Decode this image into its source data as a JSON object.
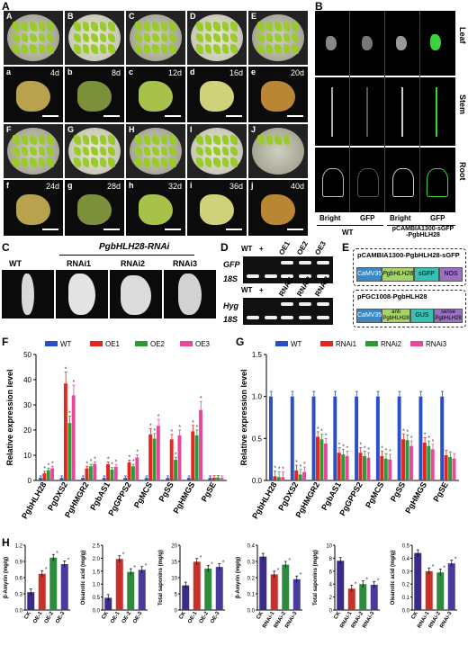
{
  "panel_labels": {
    "A": "A",
    "B": "B",
    "C": "C",
    "D": "D",
    "E": "E",
    "F": "F",
    "G": "G",
    "H": "H"
  },
  "panelA": {
    "top_tiles": [
      "A",
      "B",
      "C",
      "D",
      "E"
    ],
    "mid_tiles": [
      {
        "l": "a",
        "d": "4d"
      },
      {
        "l": "b",
        "d": "8d"
      },
      {
        "l": "c",
        "d": "12d"
      },
      {
        "l": "d",
        "d": "16d"
      },
      {
        "l": "e",
        "d": "20d"
      }
    ],
    "low_tiles": [
      "F",
      "G",
      "H",
      "I",
      "J"
    ],
    "bot_tiles": [
      {
        "l": "f",
        "d": "24d"
      },
      {
        "l": "g",
        "d": "28d"
      },
      {
        "l": "h",
        "d": "32d"
      },
      {
        "l": "i",
        "d": "36d"
      },
      {
        "l": "j",
        "d": "40d"
      }
    ]
  },
  "panelB": {
    "row_labels": [
      "Leaf",
      "Stem",
      "Root"
    ],
    "col_labels": [
      "Bright",
      "GFP",
      "Bright",
      "GFP"
    ],
    "group_wt": "WT",
    "group_construct": "pCAMBIA1300-sGFP\n-PgbHLH28"
  },
  "panelC": {
    "header": "PgbHLH28-RNAi",
    "labels": [
      "WT",
      "RNAi1",
      "RNAi2",
      "RNAi3"
    ]
  },
  "panelD": {
    "top_cols": [
      "WT",
      "+",
      "OE1",
      "OE2",
      "OE3"
    ],
    "top_rows": [
      "GFP",
      "18S"
    ],
    "bot_cols": [
      "WT",
      "+",
      "RNAi1",
      "RNAi2",
      "RNAi3"
    ],
    "bot_rows": [
      "Hyg",
      "18S"
    ]
  },
  "panelE": {
    "vector1": "pCAMBIA1300-PgbHLH28-sGFP",
    "vector1_parts": [
      "CaMV35S",
      "PgbHLH28",
      "sGFP",
      "NOS"
    ],
    "vector2": "pFGC1008-PgbHLH28",
    "vector2_parts": [
      "CaMV35S",
      "anti\nPgbHLH28",
      "GUS",
      "sense\nPgbHLH28"
    ]
  },
  "colors": {
    "wt": "#2b4fc4",
    "s1": "#e3261f",
    "s2": "#2c9a36",
    "s3": "#e8479a",
    "h_ck": "#3b2a8a",
    "h_1": "#c8302a",
    "h_2": "#2e8b3e",
    "h_3": "#4a3a9a"
  },
  "chart_data": [
    {
      "id": "F",
      "type": "bar",
      "ylabel": "Relative expression level",
      "ylim": [
        0,
        50
      ],
      "yticks": [
        0,
        10,
        20,
        30,
        40,
        50
      ],
      "categories": [
        "PgbHLH28",
        "PgDXS2",
        "PgHMGR2",
        "PgbAS1",
        "PgGPPS2",
        "PgMCS",
        "PgSS",
        "PgHMGS",
        "PgSE"
      ],
      "series": [
        {
          "name": "WT",
          "values": [
            1,
            1,
            1,
            1,
            1,
            1,
            1,
            1,
            1
          ]
        },
        {
          "name": "OE1",
          "values": [
            2.8,
            38.5,
            4.8,
            6.5,
            7.2,
            18.3,
            16.3,
            19.5,
            1.1
          ]
        },
        {
          "name": "OE2",
          "values": [
            4.1,
            22.8,
            5.6,
            4.3,
            5.6,
            16.6,
            8.2,
            17.9,
            1.2
          ]
        },
        {
          "name": "OE3",
          "values": [
            4.8,
            33.8,
            6.6,
            5.4,
            9.1,
            21.7,
            17.9,
            28.0,
            1.0
          ]
        }
      ]
    },
    {
      "id": "G",
      "type": "bar",
      "ylabel": "Relative expression level",
      "ylim": [
        0,
        1.5
      ],
      "yticks": [
        0.0,
        0.5,
        1.0,
        1.5
      ],
      "categories": [
        "PgbHLH28",
        "PgDXS2",
        "PgHMGR2",
        "PgbAS1",
        "PgGPPS2",
        "PgMCS",
        "PgSS",
        "PgHMGS",
        "PgSE"
      ],
      "series": [
        {
          "name": "WT",
          "values": [
            1,
            1,
            1,
            1,
            1,
            1,
            1,
            1,
            1
          ]
        },
        {
          "name": "RNAi1",
          "values": [
            0.05,
            0.12,
            0.52,
            0.33,
            0.33,
            0.29,
            0.49,
            0.45,
            0.3
          ]
        },
        {
          "name": "RNAi2",
          "values": [
            0.04,
            0.07,
            0.49,
            0.31,
            0.29,
            0.26,
            0.48,
            0.41,
            0.28
          ]
        },
        {
          "name": "RNAi3",
          "values": [
            0.04,
            0.1,
            0.44,
            0.29,
            0.27,
            0.25,
            0.41,
            0.37,
            0.26
          ]
        }
      ]
    },
    {
      "id": "H1",
      "type": "bar",
      "ylabel": "β-Amyrin (mg/g)",
      "ylim": [
        0,
        1.2
      ],
      "yticks": [
        0.0,
        0.3,
        0.6,
        0.9,
        1.2
      ],
      "categories": [
        "CK",
        "OE-1",
        "OE-2",
        "OE-3"
      ],
      "values": [
        0.33,
        0.67,
        0.97,
        0.85
      ]
    },
    {
      "id": "H2",
      "type": "bar",
      "ylabel": "Oleanolic acid (mg/g)",
      "ylim": [
        0,
        2.5
      ],
      "yticks": [
        0.0,
        0.5,
        1.0,
        1.5,
        2.0,
        2.5
      ],
      "categories": [
        "CK",
        "OE-1",
        "OE-2",
        "OE-3"
      ],
      "values": [
        0.47,
        1.97,
        1.47,
        1.55
      ]
    },
    {
      "id": "H3",
      "type": "bar",
      "ylabel": "Total saponins (mg/g)",
      "ylim": [
        0,
        20
      ],
      "yticks": [
        0,
        5,
        10,
        15,
        20
      ],
      "categories": [
        "CK",
        "OE-1",
        "OE-2",
        "OE-3"
      ],
      "values": [
        7.6,
        14.9,
        12.8,
        13.3
      ]
    },
    {
      "id": "H4",
      "type": "bar",
      "ylabel": "β-Amyrin (mg/g)",
      "ylim": [
        0,
        0.4
      ],
      "yticks": [
        0.0,
        0.1,
        0.2,
        0.3,
        0.4
      ],
      "categories": [
        "CK",
        "RNAi-1",
        "RNAi-2",
        "RNAi-3"
      ],
      "values": [
        0.33,
        0.22,
        0.28,
        0.19
      ]
    },
    {
      "id": "H5",
      "type": "bar",
      "ylabel": "Total saponins (mg/g)",
      "ylim": [
        0,
        10
      ],
      "yticks": [
        0,
        2,
        4,
        6,
        8,
        10
      ],
      "categories": [
        "CK",
        "RNAi-1",
        "RNAi-2",
        "RNAi-3"
      ],
      "values": [
        7.6,
        3.3,
        4.0,
        3.9
      ]
    },
    {
      "id": "H6",
      "type": "bar",
      "ylabel": "Oleanolic acid (mg/g)",
      "ylim": [
        0,
        0.5
      ],
      "yticks": [
        0.0,
        0.1,
        0.2,
        0.3,
        0.4,
        0.5
      ],
      "categories": [
        "CK",
        "RNAi-1",
        "RNAi-2",
        "RNAi-3"
      ],
      "values": [
        0.44,
        0.3,
        0.29,
        0.36
      ]
    }
  ]
}
